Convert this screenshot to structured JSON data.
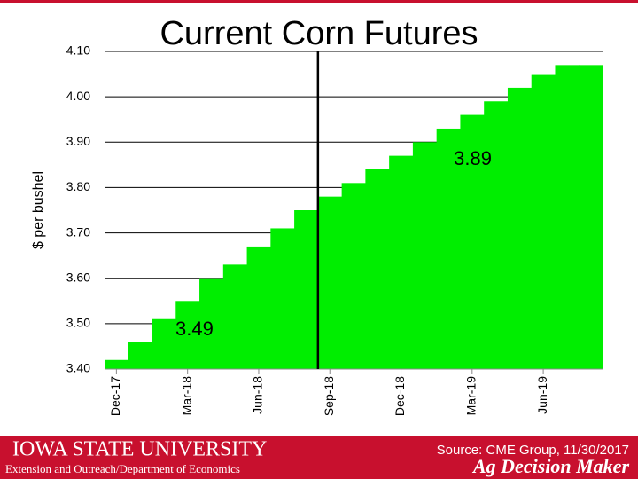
{
  "chart_data": {
    "type": "step-area",
    "title": "Current Corn Futures",
    "y_label": "$ per bushel",
    "categories": [
      "Dec-17",
      null,
      null,
      "Mar-18",
      null,
      null,
      "Jun-18",
      null,
      null,
      "Sep-18",
      null,
      null,
      "Dec-18",
      null,
      null,
      "Mar-19",
      null,
      null,
      "Jun-19",
      null,
      null
    ],
    "values": [
      3.42,
      3.46,
      3.51,
      3.55,
      3.6,
      3.63,
      3.67,
      3.71,
      3.75,
      3.78,
      3.81,
      3.84,
      3.87,
      3.9,
      3.93,
      3.96,
      3.99,
      4.02,
      4.05,
      4.07,
      4.07
    ],
    "color": "#00ee00",
    "ylim": [
      3.4,
      4.1
    ],
    "yticks": [
      {
        "value": 3.4,
        "label": "3.40"
      },
      {
        "value": 3.5,
        "label": "3.50"
      },
      {
        "value": 3.6,
        "label": "3.60"
      },
      {
        "value": 3.7,
        "label": "3.70"
      },
      {
        "value": 3.8,
        "label": "3.80"
      },
      {
        "value": 3.9,
        "label": "3.90"
      },
      {
        "value": 4.0,
        "label": "4.00"
      },
      {
        "value": 4.1,
        "label": "4.10"
      }
    ],
    "grid": true,
    "annotations": [
      "3.49",
      "3.89"
    ]
  },
  "footer": {
    "university": "IOWA STATE UNIVERSITY",
    "department": "Extension and Outreach/Department of Economics",
    "source": "Source: CME Group, 11/30/2017",
    "brand": "Ag Decision Maker"
  }
}
